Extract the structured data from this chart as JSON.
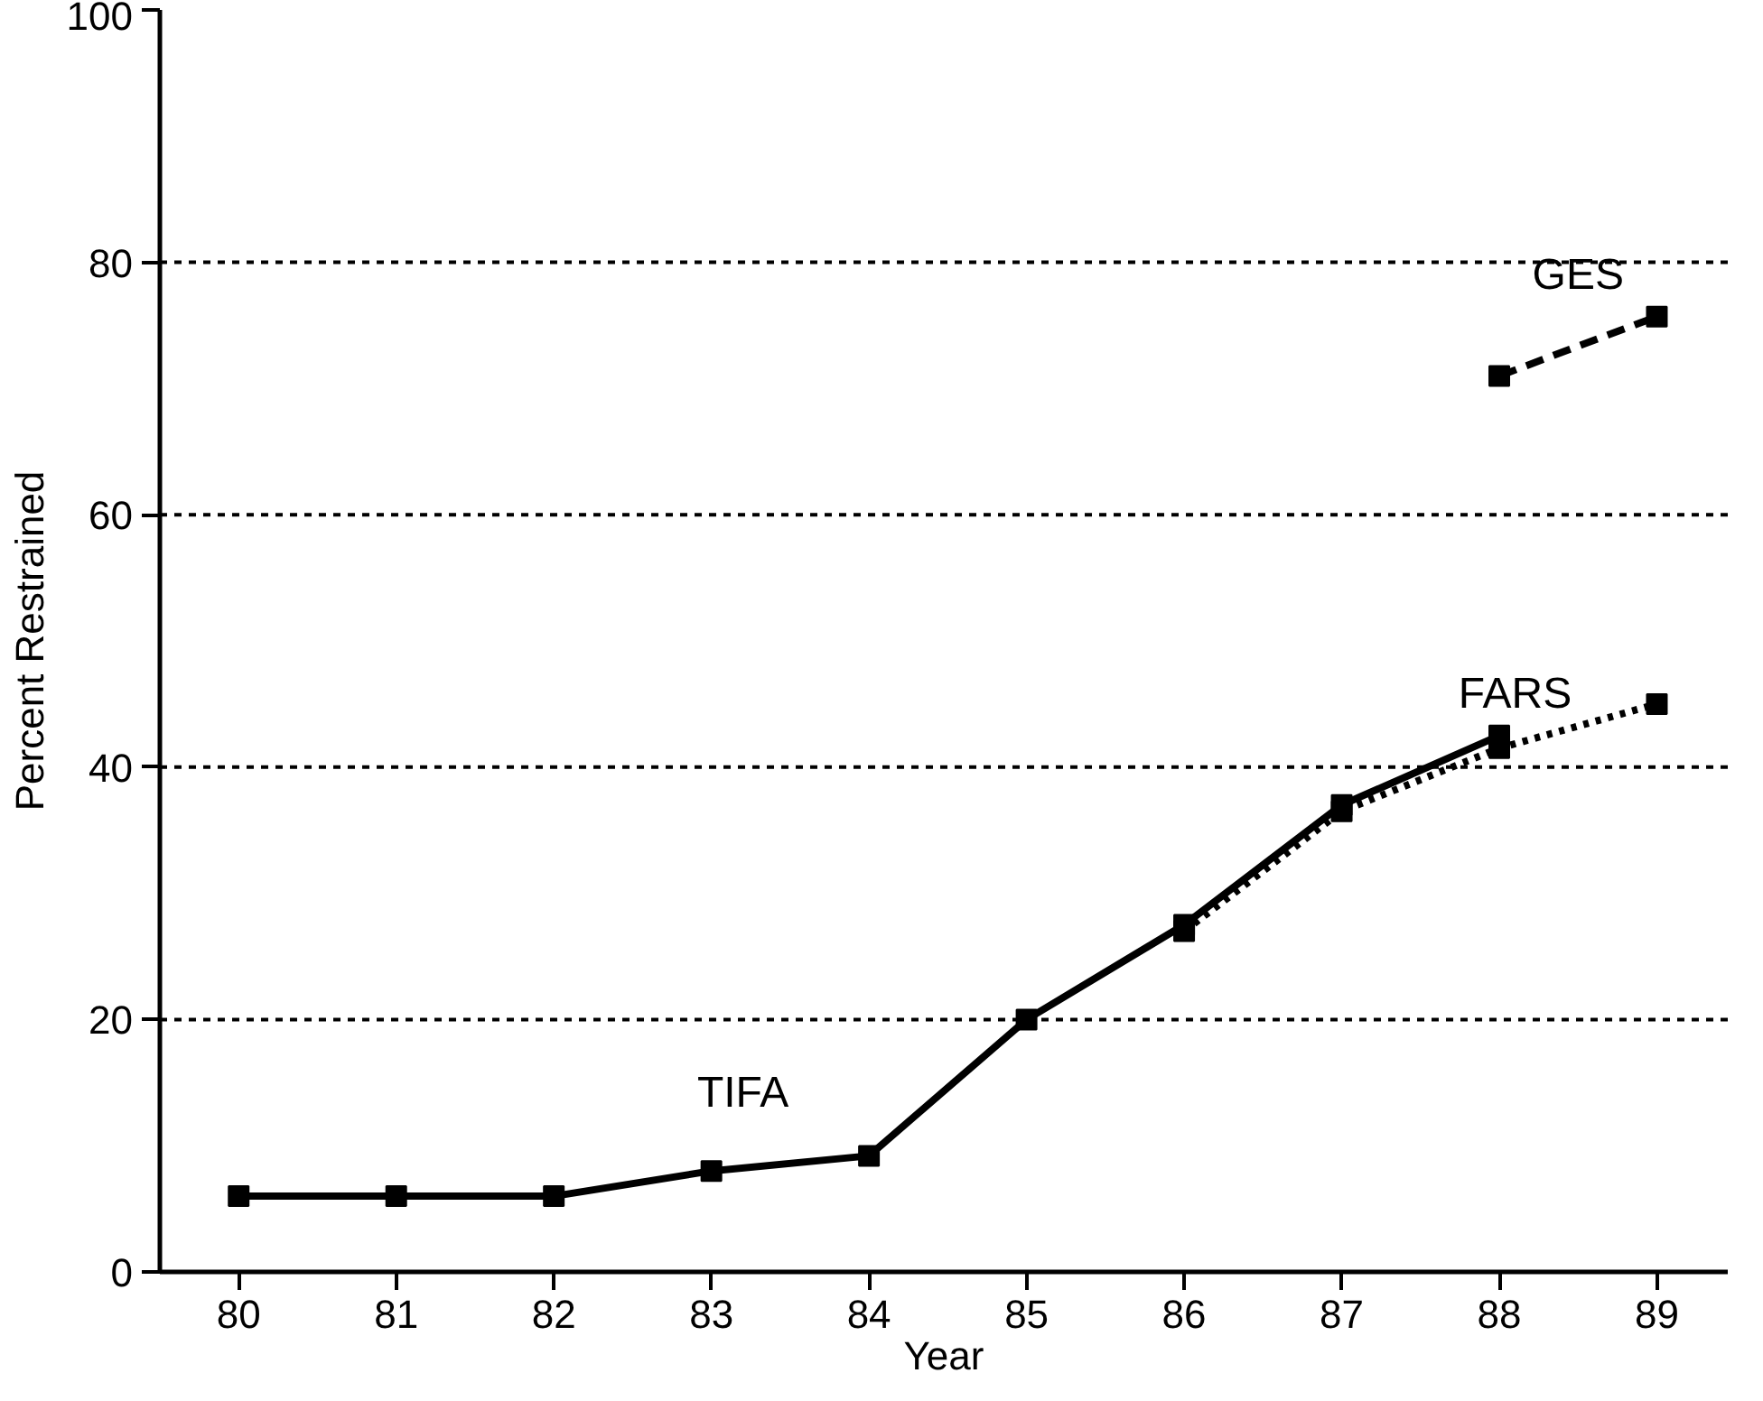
{
  "chart_data": {
    "type": "line",
    "xlabel": "Year",
    "ylabel": "Percent Restrained",
    "xlim": [
      79.5,
      89.45
    ],
    "ylim": [
      0,
      100
    ],
    "xticks": [
      80,
      81,
      82,
      83,
      84,
      85,
      86,
      87,
      88,
      89
    ],
    "yticks": [
      0,
      20,
      40,
      60,
      80,
      100
    ],
    "grid": "y",
    "marker": "square",
    "series": [
      {
        "name": "TIFA",
        "color": "#000000",
        "line_style": "solid",
        "x": [
          80,
          81,
          82,
          83,
          84,
          85,
          86,
          87,
          88
        ],
        "values": [
          6,
          6,
          6,
          8,
          9.2,
          20,
          27.5,
          37,
          42.5
        ]
      },
      {
        "name": "FARS",
        "color": "#000000",
        "line_style": "dotted",
        "x": [
          86,
          87,
          88,
          89
        ],
        "values": [
          27,
          36.5,
          41.5,
          45
        ]
      },
      {
        "name": "GES",
        "color": "#000000",
        "line_style": "dashed",
        "x": [
          88,
          89
        ],
        "values": [
          71,
          75.7
        ]
      }
    ]
  }
}
